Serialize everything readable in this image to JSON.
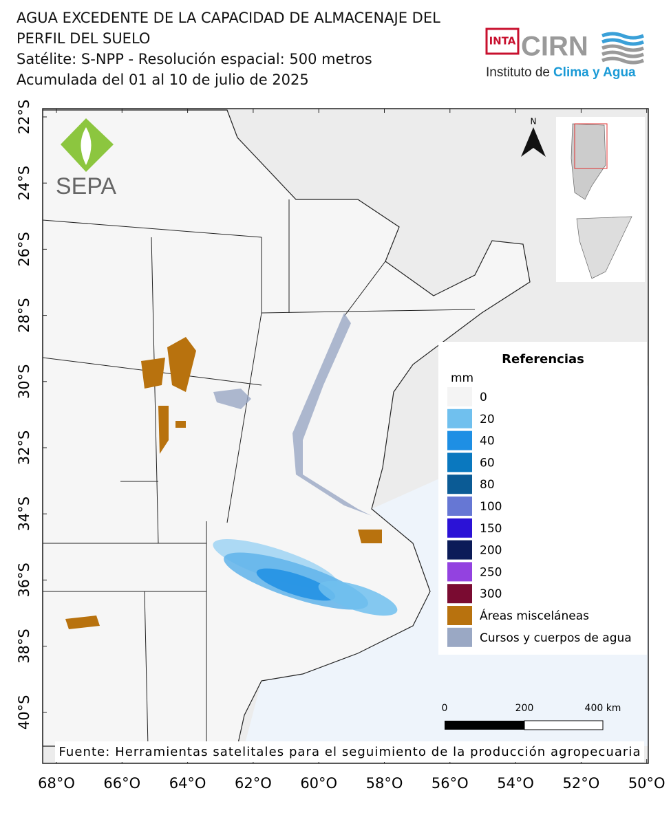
{
  "header": {
    "title_lines": [
      "AGUA EXCEDENTE DE LA CAPACIDAD DE ALMACENAJE DEL",
      "PERFIL DEL SUELO",
      "Satélite: S-NPP - Resolución espacial: 500 metros",
      "Acumulada del 01 al 10 de julio de 2025"
    ]
  },
  "logos": {
    "inta": "INTA",
    "cirn": "CIRN",
    "institute": "Instituto de",
    "institute_highlight": "Clima y Agua",
    "sepa": "SEPA"
  },
  "map": {
    "north": "N",
    "lat_labels": [
      "22°S",
      "24°S",
      "26°S",
      "28°S",
      "30°S",
      "32°S",
      "34°S",
      "36°S",
      "38°S",
      "40°S"
    ],
    "lon_labels": [
      "68°O",
      "66°O",
      "64°O",
      "62°O",
      "60°O",
      "58°O",
      "56°O",
      "54°O",
      "52°O",
      "50°O"
    ]
  },
  "legend": {
    "title": "Referencias",
    "unit": "mm",
    "items": [
      {
        "label": "0",
        "color": "#f4f4f4"
      },
      {
        "label": "20",
        "color": "#70c0ee"
      },
      {
        "label": "40",
        "color": "#1e8fe4"
      },
      {
        "label": "60",
        "color": "#0a78bf"
      },
      {
        "label": "80",
        "color": "#0b5b95"
      },
      {
        "label": "100",
        "color": "#6677d4"
      },
      {
        "label": "150",
        "color": "#2b12d6"
      },
      {
        "label": "200",
        "color": "#0b1b58"
      },
      {
        "label": "250",
        "color": "#9342e0"
      },
      {
        "label": "300",
        "color": "#7a0b31"
      },
      {
        "label": "Áreas misceláneas",
        "color": "#b8720e"
      },
      {
        "label": "Cursos y cuerpos de agua",
        "color": "#9aa8c4"
      }
    ]
  },
  "scale_bar": {
    "labels": [
      "0",
      "200",
      "400 km"
    ]
  },
  "source": "Fuente: Herramientas satelitales para el seguimiento de la producción agropecuaria"
}
